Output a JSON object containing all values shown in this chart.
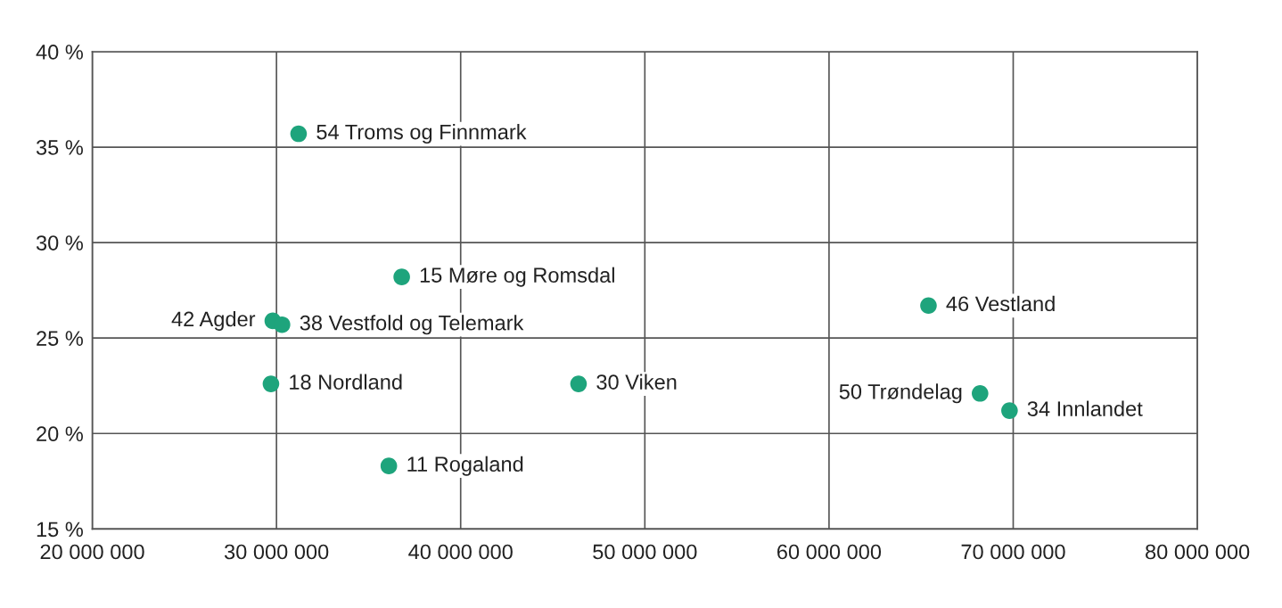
{
  "chart_data": {
    "type": "scatter",
    "x": [
      31200000,
      36800000,
      29800000,
      30300000,
      29700000,
      46400000,
      36100000,
      65400000,
      68200000,
      69800000
    ],
    "series": [
      {
        "color": "#1ea47c",
        "values": [
          35.7,
          28.2,
          25.9,
          25.7,
          22.6,
          22.6,
          18.3,
          26.7,
          22.1,
          21.2
        ]
      }
    ],
    "annotations": [
      {
        "text": "54 Troms og Finnmark",
        "x": 31200000,
        "y": 35.7
      },
      {
        "text": "15 Møre og Romsdal",
        "x": 36800000,
        "y": 28.2
      },
      {
        "text": "42 Agder",
        "x": 29800000,
        "y": 25.9
      },
      {
        "text": "38 Vestfold og Telemark",
        "x": 30300000,
        "y": 25.7
      },
      {
        "text": "18 Nordland",
        "x": 29700000,
        "y": 22.6
      },
      {
        "text": "30 Viken",
        "x": 46400000,
        "y": 22.6
      },
      {
        "text": "11 Rogaland",
        "x": 36100000,
        "y": 18.3
      },
      {
        "text": "46 Vestland",
        "x": 65400000,
        "y": 26.7
      },
      {
        "text": "50 Trøndelag",
        "x": 68200000,
        "y": 22.1
      },
      {
        "text": "34 Innlandet",
        "x": 69800000,
        "y": 21.2
      }
    ],
    "xlim": [
      20000000,
      80000000
    ],
    "xticks": [
      {
        "value": 20000000,
        "label": "20 000 000"
      },
      {
        "value": 30000000,
        "label": "30 000 000"
      },
      {
        "value": 40000000,
        "label": "40 000 000"
      },
      {
        "value": 50000000,
        "label": "50 000 000"
      },
      {
        "value": 60000000,
        "label": "60 000 000"
      },
      {
        "value": 70000000,
        "label": "70 000 000"
      },
      {
        "value": 80000000,
        "label": "80 000 000"
      }
    ],
    "ylim": [
      15,
      40
    ],
    "yticks": [
      {
        "value": 15,
        "label": "15 %"
      },
      {
        "value": 20,
        "label": "20 %"
      },
      {
        "value": 25,
        "label": "25 %"
      },
      {
        "value": 30,
        "label": "30 %"
      },
      {
        "value": 35,
        "label": "35 %"
      },
      {
        "value": 40,
        "label": "40 %"
      }
    ],
    "grid": true,
    "marker": "circle"
  }
}
